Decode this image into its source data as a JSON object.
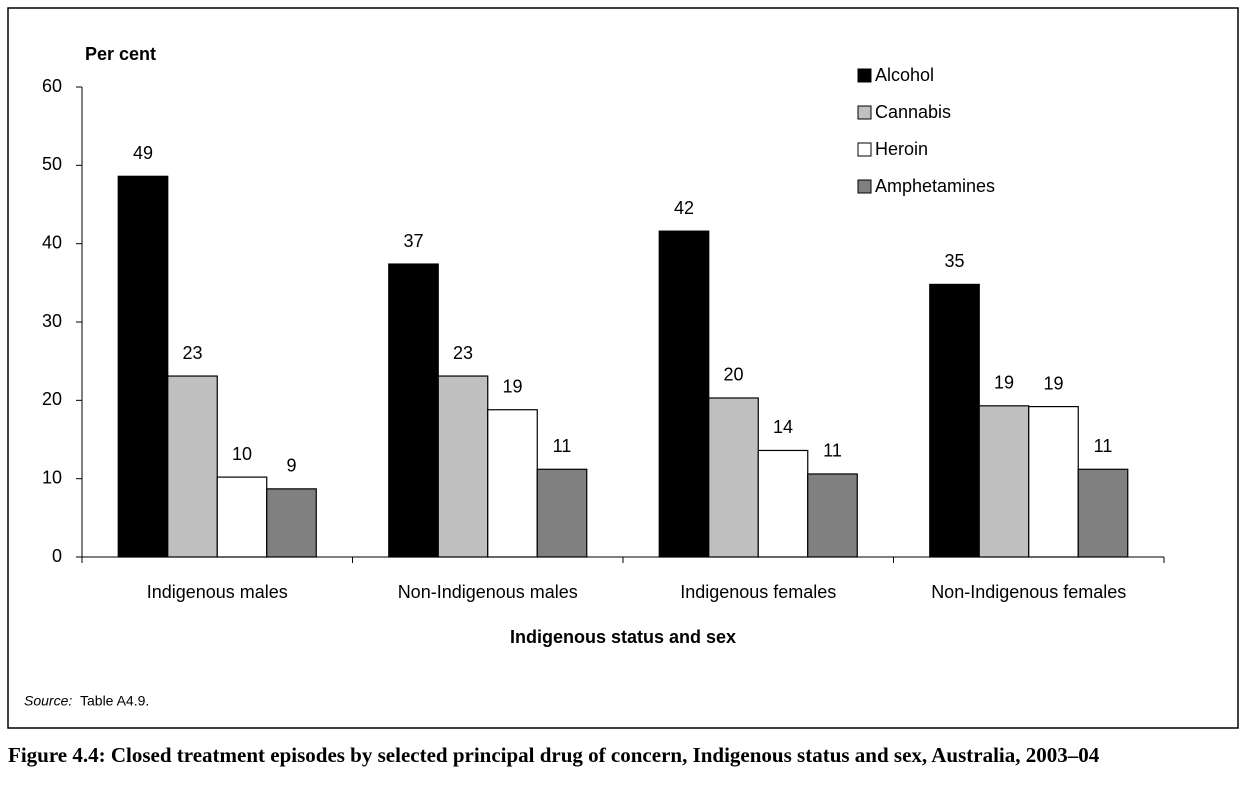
{
  "chart_data": {
    "type": "bar",
    "y_axis_label": "Per cent",
    "x_axis_label": "Indigenous status and sex",
    "categories": [
      "Indigenous males",
      "Non-Indigenous males",
      "Indigenous females",
      "Non-Indigenous females"
    ],
    "series": [
      {
        "name": "Alcohol",
        "color": "#000000",
        "values": [
          48.6,
          37.4,
          41.6,
          34.8
        ],
        "value_labels": [
          "49",
          "37",
          "42",
          "35"
        ]
      },
      {
        "name": "Cannabis",
        "color": "#c0c0c0",
        "values": [
          23.1,
          23.1,
          20.3,
          19.3
        ],
        "value_labels": [
          "23",
          "23",
          "20",
          "19"
        ]
      },
      {
        "name": "Heroin",
        "color": "#ffffff",
        "values": [
          10.2,
          18.8,
          13.6,
          19.2
        ],
        "value_labels": [
          "10",
          "19",
          "14",
          "19"
        ]
      },
      {
        "name": "Amphetamines",
        "color": "#808080",
        "values": [
          8.7,
          11.2,
          10.6,
          11.2
        ],
        "value_labels": [
          "9",
          "11",
          "11",
          "11"
        ]
      }
    ],
    "ylim": [
      0,
      60
    ],
    "yticks": [
      0,
      10,
      20,
      30,
      40,
      50,
      60
    ],
    "grid": false,
    "legend": "upper right",
    "source_label": "Source:",
    "source": "Table A4.9.",
    "caption": "Figure 4.4: Closed treatment episodes by selected principal drug of concern, Indigenous status and sex, Australia, 2003–04"
  }
}
